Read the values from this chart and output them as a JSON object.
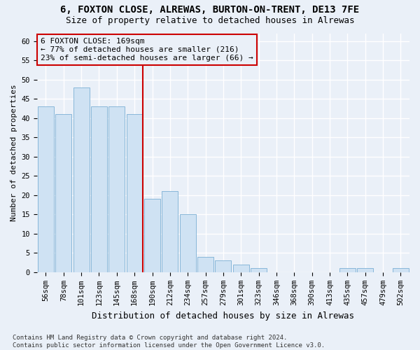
{
  "title": "6, FOXTON CLOSE, ALREWAS, BURTON-ON-TRENT, DE13 7FE",
  "subtitle": "Size of property relative to detached houses in Alrewas",
  "xlabel": "Distribution of detached houses by size in Alrewas",
  "ylabel": "Number of detached properties",
  "categories": [
    "56sqm",
    "78sqm",
    "101sqm",
    "123sqm",
    "145sqm",
    "168sqm",
    "190sqm",
    "212sqm",
    "234sqm",
    "257sqm",
    "279sqm",
    "301sqm",
    "323sqm",
    "346sqm",
    "368sqm",
    "390sqm",
    "413sqm",
    "435sqm",
    "457sqm",
    "479sqm",
    "502sqm"
  ],
  "values": [
    43,
    41,
    48,
    43,
    43,
    41,
    19,
    21,
    15,
    4,
    3,
    2,
    1,
    0,
    0,
    0,
    0,
    1,
    1,
    0,
    1
  ],
  "bar_color": "#cfe2f3",
  "bar_edge_color": "#7bafd4",
  "vline_x_index": 5,
  "vline_color": "#cc0000",
  "annotation_line1": "6 FOXTON CLOSE: 169sqm",
  "annotation_line2": "← 77% of detached houses are smaller (216)",
  "annotation_line3": "23% of semi-detached houses are larger (66) →",
  "annotation_box_color": "#cc0000",
  "ylim": [
    0,
    62
  ],
  "yticks": [
    0,
    5,
    10,
    15,
    20,
    25,
    30,
    35,
    40,
    45,
    50,
    55,
    60
  ],
  "footnote": "Contains HM Land Registry data © Crown copyright and database right 2024.\nContains public sector information licensed under the Open Government Licence v3.0.",
  "background_color": "#eaf0f8",
  "grid_color": "#ffffff",
  "title_fontsize": 10,
  "subtitle_fontsize": 9,
  "xlabel_fontsize": 9,
  "ylabel_fontsize": 8,
  "tick_fontsize": 7.5,
  "annotation_fontsize": 8,
  "footnote_fontsize": 6.5
}
